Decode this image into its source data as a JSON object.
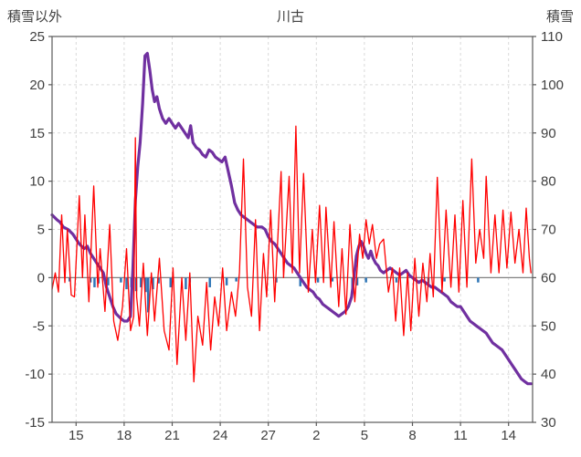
{
  "chart_data": {
    "type": "line",
    "chart_title": "川古",
    "left_axis_title": "積雪以外",
    "right_axis_title": "積雪",
    "x_domain": [
      13.5,
      43.5
    ],
    "x_tick_days": [
      15,
      18,
      21,
      24,
      27,
      30,
      33,
      36,
      39,
      42
    ],
    "x_tick_labels": [
      "15",
      "18",
      "21",
      "24",
      "27",
      "2",
      "5",
      "8",
      "11",
      "14"
    ],
    "left_axis": {
      "min": -15,
      "max": 25,
      "step": 5
    },
    "right_axis": {
      "min": 30,
      "max": 110,
      "step": 10
    },
    "colors": {
      "grid": "#D9D9D9",
      "zero_line": "#808080",
      "frame": "#595959",
      "text": "#404040",
      "title_text": "#333333"
    },
    "series": [
      {
        "id": "blue-bars",
        "type": "bar",
        "axis": "left",
        "color": "#2E75B6",
        "bar_width": 2.5,
        "points": [
          [
            14.6,
            -0.4
          ],
          [
            15.9,
            -0.5
          ],
          [
            16.15,
            -1.0
          ],
          [
            16.4,
            -0.6
          ],
          [
            17.0,
            -0.8
          ],
          [
            17.8,
            -0.5
          ],
          [
            18.15,
            -1.2
          ],
          [
            18.45,
            -1.0
          ],
          [
            18.75,
            -1.4
          ],
          [
            19.05,
            -1.0
          ],
          [
            19.35,
            -1.5
          ],
          [
            19.5,
            -3.6
          ],
          [
            19.8,
            -1.2
          ],
          [
            20.15,
            -0.6
          ],
          [
            20.9,
            -1.0
          ],
          [
            21.85,
            -1.2
          ],
          [
            22.1,
            -0.5
          ],
          [
            23.35,
            -1.0
          ],
          [
            24.4,
            -0.8
          ],
          [
            25.0,
            -0.4
          ],
          [
            27.5,
            -0.5
          ],
          [
            29.0,
            -0.9
          ],
          [
            30.1,
            -0.5
          ],
          [
            31.0,
            -0.4
          ],
          [
            32.25,
            -1.5
          ],
          [
            32.55,
            -0.8
          ],
          [
            33.1,
            -0.5
          ],
          [
            35.0,
            -0.5
          ],
          [
            37.0,
            -0.6
          ],
          [
            38.0,
            -0.4
          ],
          [
            40.1,
            -0.5
          ]
        ]
      },
      {
        "id": "purple-line-snow-depth",
        "type": "line",
        "axis": "right",
        "color": "#7030A0",
        "stroke_width": 3.2,
        "points": [
          [
            13.5,
            73
          ],
          [
            13.8,
            72
          ],
          [
            14.0,
            71.5
          ],
          [
            14.2,
            70.5
          ],
          [
            14.5,
            70
          ],
          [
            14.8,
            69
          ],
          [
            15.0,
            68
          ],
          [
            15.2,
            67
          ],
          [
            15.5,
            66
          ],
          [
            15.7,
            66.5
          ],
          [
            15.9,
            65
          ],
          [
            16.1,
            64
          ],
          [
            16.4,
            62.5
          ],
          [
            16.7,
            61
          ],
          [
            16.9,
            58
          ],
          [
            17.1,
            56
          ],
          [
            17.3,
            54
          ],
          [
            17.5,
            52.5
          ],
          [
            17.8,
            51.5
          ],
          [
            18.0,
            51
          ],
          [
            18.2,
            51
          ],
          [
            18.4,
            52
          ],
          [
            18.55,
            62
          ],
          [
            18.7,
            76
          ],
          [
            18.85,
            83
          ],
          [
            19.0,
            88
          ],
          [
            19.15,
            96
          ],
          [
            19.3,
            106
          ],
          [
            19.45,
            106.5
          ],
          [
            19.6,
            103
          ],
          [
            19.75,
            99
          ],
          [
            19.9,
            96.5
          ],
          [
            20.05,
            97.5
          ],
          [
            20.2,
            95
          ],
          [
            20.4,
            93
          ],
          [
            20.6,
            92
          ],
          [
            20.8,
            93
          ],
          [
            21.0,
            92
          ],
          [
            21.2,
            91
          ],
          [
            21.4,
            92
          ],
          [
            21.6,
            91
          ],
          [
            21.8,
            90
          ],
          [
            22.0,
            89
          ],
          [
            22.15,
            91.5
          ],
          [
            22.3,
            88
          ],
          [
            22.5,
            87
          ],
          [
            22.7,
            86.5
          ],
          [
            22.9,
            85.5
          ],
          [
            23.1,
            85
          ],
          [
            23.3,
            86.5
          ],
          [
            23.5,
            86
          ],
          [
            23.7,
            85
          ],
          [
            23.9,
            84.5
          ],
          [
            24.1,
            84
          ],
          [
            24.3,
            85
          ],
          [
            24.5,
            82
          ],
          [
            24.7,
            79
          ],
          [
            24.9,
            75.5
          ],
          [
            25.1,
            74
          ],
          [
            25.3,
            73
          ],
          [
            25.5,
            72.5
          ],
          [
            25.7,
            72
          ],
          [
            25.9,
            71.5
          ],
          [
            26.1,
            71
          ],
          [
            26.3,
            70.5
          ],
          [
            26.6,
            70.5
          ],
          [
            26.8,
            70
          ],
          [
            27.0,
            68.5
          ],
          [
            27.2,
            67.5
          ],
          [
            27.4,
            67
          ],
          [
            27.6,
            66
          ],
          [
            27.8,
            65
          ],
          [
            28.0,
            64
          ],
          [
            28.2,
            63
          ],
          [
            28.4,
            62.5
          ],
          [
            28.6,
            62
          ],
          [
            28.8,
            61
          ],
          [
            29.0,
            60
          ],
          [
            29.2,
            59
          ],
          [
            29.4,
            58
          ],
          [
            29.6,
            57.5
          ],
          [
            29.8,
            57
          ],
          [
            30.0,
            56
          ],
          [
            30.2,
            55.5
          ],
          [
            30.4,
            54.5
          ],
          [
            30.6,
            54
          ],
          [
            30.8,
            53.5
          ],
          [
            31.0,
            53
          ],
          [
            31.2,
            52.5
          ],
          [
            31.4,
            52
          ],
          [
            31.6,
            52.5
          ],
          [
            31.8,
            53
          ],
          [
            32.0,
            54
          ],
          [
            32.2,
            56
          ],
          [
            32.35,
            60
          ],
          [
            32.5,
            64.5
          ],
          [
            32.65,
            66.5
          ],
          [
            32.8,
            67.5
          ],
          [
            32.95,
            66.5
          ],
          [
            33.1,
            65
          ],
          [
            33.25,
            64
          ],
          [
            33.4,
            65.5
          ],
          [
            33.55,
            64
          ],
          [
            33.7,
            63
          ],
          [
            33.85,
            62.5
          ],
          [
            34.0,
            61.5
          ],
          [
            34.2,
            61
          ],
          [
            34.4,
            61.5
          ],
          [
            34.6,
            62
          ],
          [
            34.8,
            61.5
          ],
          [
            35.0,
            61
          ],
          [
            35.2,
            60.5
          ],
          [
            35.4,
            61
          ],
          [
            35.6,
            61.5
          ],
          [
            35.8,
            60.5
          ],
          [
            36.0,
            60
          ],
          [
            36.2,
            59.5
          ],
          [
            36.4,
            59
          ],
          [
            36.6,
            59.5
          ],
          [
            36.8,
            59
          ],
          [
            37.0,
            58.5
          ],
          [
            37.2,
            58
          ],
          [
            37.4,
            58
          ],
          [
            37.6,
            57.5
          ],
          [
            37.8,
            57
          ],
          [
            38.0,
            56.5
          ],
          [
            38.2,
            56
          ],
          [
            38.4,
            55
          ],
          [
            38.6,
            54.5
          ],
          [
            38.8,
            54
          ],
          [
            39.0,
            54
          ],
          [
            39.2,
            53
          ],
          [
            39.4,
            52
          ],
          [
            39.6,
            51
          ],
          [
            39.8,
            50.5
          ],
          [
            40.0,
            50
          ],
          [
            40.2,
            49.5
          ],
          [
            40.4,
            49
          ],
          [
            40.6,
            48.5
          ],
          [
            40.8,
            47.5
          ],
          [
            41.0,
            46.5
          ],
          [
            41.2,
            46
          ],
          [
            41.4,
            45.5
          ],
          [
            41.6,
            45
          ],
          [
            41.8,
            44
          ],
          [
            42.0,
            43
          ],
          [
            42.2,
            42
          ],
          [
            42.4,
            41
          ],
          [
            42.6,
            40
          ],
          [
            42.8,
            39
          ],
          [
            43.0,
            38.5
          ],
          [
            43.2,
            38
          ],
          [
            43.4,
            38
          ]
        ]
      },
      {
        "id": "red-line",
        "type": "line",
        "axis": "left",
        "color": "#FF0000",
        "stroke_width": 1.3,
        "points": [
          [
            13.5,
            -1.2
          ],
          [
            13.7,
            0.5
          ],
          [
            13.9,
            -1.5
          ],
          [
            14.1,
            6.5
          ],
          [
            14.3,
            -0.5
          ],
          [
            14.45,
            5.0
          ],
          [
            14.7,
            -1.8
          ],
          [
            14.9,
            -2.0
          ],
          [
            15.2,
            8.5
          ],
          [
            15.4,
            0.0
          ],
          [
            15.55,
            6.5
          ],
          [
            15.8,
            -2.5
          ],
          [
            16.1,
            9.5
          ],
          [
            16.35,
            -1.0
          ],
          [
            16.5,
            3.0
          ],
          [
            16.8,
            -3.5
          ],
          [
            17.1,
            5.5
          ],
          [
            17.35,
            -4.5
          ],
          [
            17.6,
            -6.5
          ],
          [
            17.9,
            -3.0
          ],
          [
            18.15,
            3.0
          ],
          [
            18.4,
            -5.5
          ],
          [
            18.6,
            -4.0
          ],
          [
            18.7,
            14.5
          ],
          [
            18.78,
            -2.0
          ],
          [
            18.95,
            -5.0
          ],
          [
            19.2,
            1.5
          ],
          [
            19.45,
            -6.0
          ],
          [
            19.7,
            0.5
          ],
          [
            19.9,
            -4.5
          ],
          [
            20.2,
            2.0
          ],
          [
            20.5,
            -5.5
          ],
          [
            20.8,
            -7.5
          ],
          [
            21.05,
            1.0
          ],
          [
            21.3,
            -9.0
          ],
          [
            21.6,
            0.0
          ],
          [
            21.85,
            -6.5
          ],
          [
            22.1,
            0.5
          ],
          [
            22.35,
            -10.8
          ],
          [
            22.6,
            -4.0
          ],
          [
            22.9,
            -7.0
          ],
          [
            23.15,
            -0.5
          ],
          [
            23.4,
            -7.5
          ],
          [
            23.65,
            -2.0
          ],
          [
            23.9,
            -5.0
          ],
          [
            24.15,
            1.0
          ],
          [
            24.4,
            -5.5
          ],
          [
            24.7,
            -1.5
          ],
          [
            24.95,
            -4.0
          ],
          [
            25.2,
            0.5
          ],
          [
            25.45,
            12.3
          ],
          [
            25.7,
            -1.0
          ],
          [
            25.95,
            -4.0
          ],
          [
            26.2,
            6.0
          ],
          [
            26.45,
            -5.5
          ],
          [
            26.7,
            2.5
          ],
          [
            26.9,
            -2.0
          ],
          [
            27.15,
            7.0
          ],
          [
            27.4,
            -2.5
          ],
          [
            27.8,
            11.0
          ],
          [
            27.95,
            0.0
          ],
          [
            28.3,
            10.5
          ],
          [
            28.5,
            0.5
          ],
          [
            28.72,
            15.7
          ],
          [
            28.95,
            0.5
          ],
          [
            29.2,
            10.8
          ],
          [
            29.5,
            -1.5
          ],
          [
            29.75,
            5.0
          ],
          [
            29.95,
            -0.5
          ],
          [
            30.2,
            7.5
          ],
          [
            30.45,
            -0.5
          ],
          [
            30.6,
            7.3
          ],
          [
            30.9,
            -1.0
          ],
          [
            31.1,
            5.8
          ],
          [
            31.4,
            -3.0
          ],
          [
            31.6,
            3.0
          ],
          [
            31.85,
            -3.8
          ],
          [
            32.1,
            5.5
          ],
          [
            32.4,
            -2.5
          ],
          [
            32.7,
            4.5
          ],
          [
            32.9,
            2.0
          ],
          [
            33.1,
            6.0
          ],
          [
            33.3,
            3.5
          ],
          [
            33.5,
            5.5
          ],
          [
            33.75,
            2.0
          ],
          [
            33.95,
            3.5
          ],
          [
            34.2,
            4.0
          ],
          [
            34.5,
            -1.5
          ],
          [
            34.75,
            1.0
          ],
          [
            34.95,
            -4.5
          ],
          [
            35.2,
            1.0
          ],
          [
            35.45,
            -6.0
          ],
          [
            35.7,
            0.5
          ],
          [
            35.9,
            -5.5
          ],
          [
            36.15,
            2.0
          ],
          [
            36.4,
            -4.0
          ],
          [
            36.65,
            1.5
          ],
          [
            36.9,
            -2.5
          ],
          [
            37.1,
            2.5
          ],
          [
            37.3,
            -2.0
          ],
          [
            37.55,
            10.4
          ],
          [
            37.85,
            -1.5
          ],
          [
            38.1,
            7.0
          ],
          [
            38.4,
            -1.0
          ],
          [
            38.65,
            6.5
          ],
          [
            38.9,
            -1.5
          ],
          [
            39.15,
            8.0
          ],
          [
            39.4,
            -1.0
          ],
          [
            39.7,
            12.3
          ],
          [
            39.95,
            1.5
          ],
          [
            40.2,
            5.0
          ],
          [
            40.45,
            2.0
          ],
          [
            40.6,
            10.5
          ],
          [
            40.9,
            0.5
          ],
          [
            41.15,
            6.5
          ],
          [
            41.4,
            0.5
          ],
          [
            41.65,
            7.0
          ],
          [
            41.9,
            1.0
          ],
          [
            42.15,
            6.8
          ],
          [
            42.4,
            1.5
          ],
          [
            42.65,
            5.0
          ],
          [
            42.9,
            0.5
          ],
          [
            43.1,
            7.2
          ],
          [
            43.3,
            2.0
          ],
          [
            43.4,
            0.5
          ]
        ]
      }
    ]
  }
}
